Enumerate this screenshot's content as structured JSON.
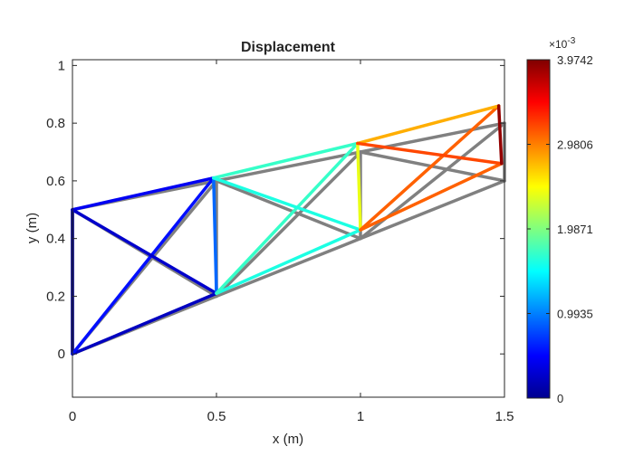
{
  "chart_data": {
    "type": "line",
    "title": "Displacement",
    "xlabel": "x (m)",
    "ylabel": "y (m)",
    "xlim": [
      0,
      1.5
    ],
    "ylim": [
      -0.15,
      1.02
    ],
    "xticks": [
      0,
      0.5,
      1,
      1.5
    ],
    "xtick_labels": [
      "0",
      "0.5",
      "1",
      "1.5"
    ],
    "yticks": [
      0,
      0.2,
      0.4,
      0.6,
      0.8,
      1
    ],
    "ytick_labels": [
      "0",
      "0.2",
      "0.4",
      "0.6",
      "0.8",
      "1"
    ],
    "grid": false,
    "original_nodes": [
      [
        0,
        0
      ],
      [
        0,
        0.5
      ],
      [
        0.5,
        0.2
      ],
      [
        0.5,
        0.6
      ],
      [
        1,
        0.4
      ],
      [
        1,
        0.7
      ],
      [
        1.5,
        0.6
      ],
      [
        1.5,
        0.8
      ]
    ],
    "deformed_nodes": [
      [
        0,
        0
      ],
      [
        0,
        0.5
      ],
      [
        0.5,
        0.21
      ],
      [
        0.49,
        0.61
      ],
      [
        1,
        0.43
      ],
      [
        0.99,
        0.73
      ],
      [
        1.49,
        0.66
      ],
      [
        1.48,
        0.86
      ]
    ],
    "elements": [
      {
        "nodes": [
          0,
          1
        ],
        "displacement": 5e-05
      },
      {
        "nodes": [
          0,
          2
        ],
        "displacement": 0.00025
      },
      {
        "nodes": [
          0,
          3
        ],
        "displacement": 0.00055
      },
      {
        "nodes": [
          1,
          3
        ],
        "displacement": 0.00045
      },
      {
        "nodes": [
          1,
          2
        ],
        "displacement": 0.0003
      },
      {
        "nodes": [
          2,
          3
        ],
        "displacement": 0.0009
      },
      {
        "nodes": [
          2,
          4
        ],
        "displacement": 0.0016
      },
      {
        "nodes": [
          2,
          5
        ],
        "displacement": 0.0017
      },
      {
        "nodes": [
          3,
          5
        ],
        "displacement": 0.0017
      },
      {
        "nodes": [
          3,
          4
        ],
        "displacement": 0.0016
      },
      {
        "nodes": [
          4,
          5
        ],
        "displacement": 0.0024
      },
      {
        "nodes": [
          4,
          6
        ],
        "displacement": 0.0031
      },
      {
        "nodes": [
          4,
          7
        ],
        "displacement": 0.0031
      },
      {
        "nodes": [
          5,
          7
        ],
        "displacement": 0.0028
      },
      {
        "nodes": [
          5,
          6
        ],
        "displacement": 0.0032
      },
      {
        "nodes": [
          6,
          7
        ],
        "displacement": 0.0039
      }
    ],
    "colorbar": {
      "colormap": "jet",
      "min": 0,
      "max": 0.0039742,
      "exponent_label": "×10",
      "exponent_power": "-3",
      "ticks": [
        0,
        0.9935,
        1.9871,
        2.9806,
        3.9742
      ],
      "tick_labels": [
        "0",
        "0.9935",
        "1.9871",
        "2.9806",
        "3.9742"
      ]
    },
    "colors": {
      "original_structure": "#808080",
      "axes": "#262626",
      "background": "#ffffff"
    }
  }
}
